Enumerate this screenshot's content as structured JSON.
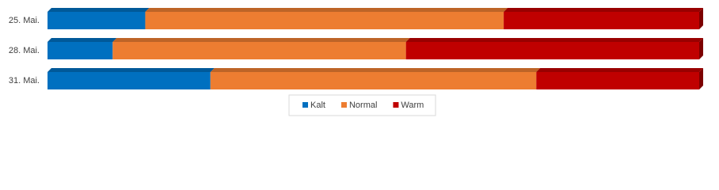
{
  "chart_data": {
    "type": "bar",
    "orientation": "horizontal",
    "stacked": "percent",
    "categories": [
      "25. Mai.",
      "28. Mai.",
      "31. Mai."
    ],
    "series": [
      {
        "name": "Kalt",
        "color": "#0070c0",
        "values": [
          15,
          10,
          25
        ]
      },
      {
        "name": "Normal",
        "color": "#ed7d31",
        "values": [
          55,
          45,
          50
        ]
      },
      {
        "name": "Warm",
        "color": "#c00000",
        "values": [
          30,
          45,
          25
        ]
      }
    ],
    "legend": "bottom"
  }
}
